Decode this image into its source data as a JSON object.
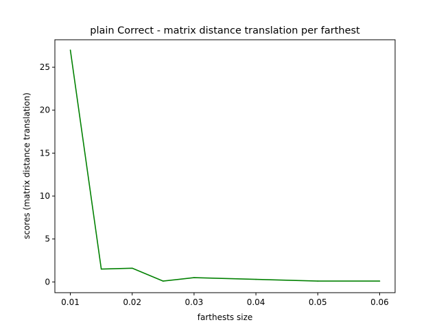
{
  "chart_data": {
    "type": "line",
    "title": "plain Correct - matrix distance translation per farthest",
    "xlabel": "farthests size",
    "ylabel": "scores (matrix distance translation)",
    "xlim": [
      0.0075,
      0.0625
    ],
    "ylim": [
      -1.25,
      28.2
    ],
    "xticks": [
      0.01,
      0.02,
      0.03,
      0.04,
      0.05,
      0.06
    ],
    "xtick_labels": [
      "0.01",
      "0.02",
      "0.03",
      "0.04",
      "0.05",
      "0.06"
    ],
    "yticks": [
      0,
      5,
      10,
      15,
      20,
      25
    ],
    "ytick_labels": [
      "0",
      "5",
      "10",
      "15",
      "20",
      "25"
    ],
    "grid": false,
    "legend": "none",
    "series": [
      {
        "color": "#008000",
        "x": [
          0.01,
          0.015,
          0.02,
          0.025,
          0.03,
          0.04,
          0.05,
          0.06
        ],
        "y": [
          27.0,
          1.5,
          1.6,
          0.1,
          0.5,
          0.3,
          0.1,
          0.1
        ]
      }
    ]
  }
}
